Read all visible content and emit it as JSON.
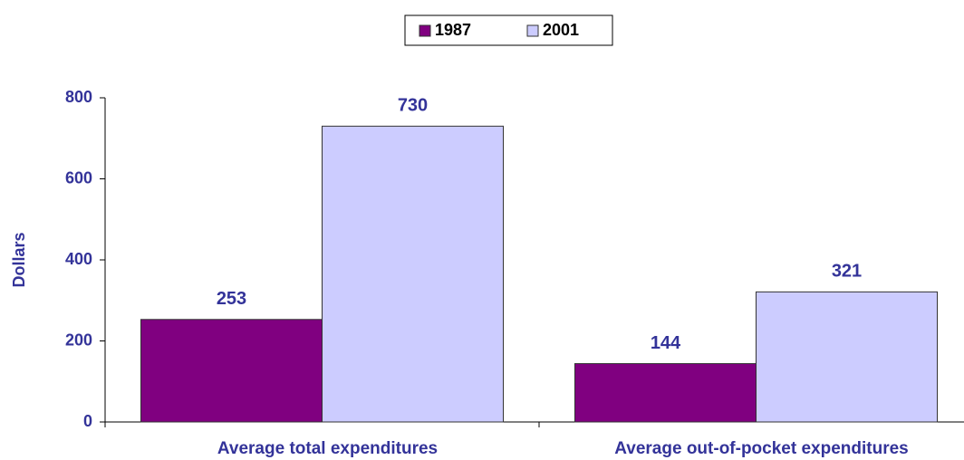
{
  "chart_data": {
    "type": "bar",
    "y_label": "Dollars",
    "categories": [
      "Average total expenditures",
      "Average out-of-pocket expenditures"
    ],
    "series": [
      {
        "name": "1987",
        "color": "#800080",
        "values": [
          253,
          144
        ]
      },
      {
        "name": "2001",
        "color": "#ccccff",
        "values": [
          730,
          321
        ]
      }
    ],
    "ylim": [
      0,
      800
    ],
    "yticks": [
      0,
      200,
      400,
      600,
      800
    ],
    "legend": "top"
  }
}
